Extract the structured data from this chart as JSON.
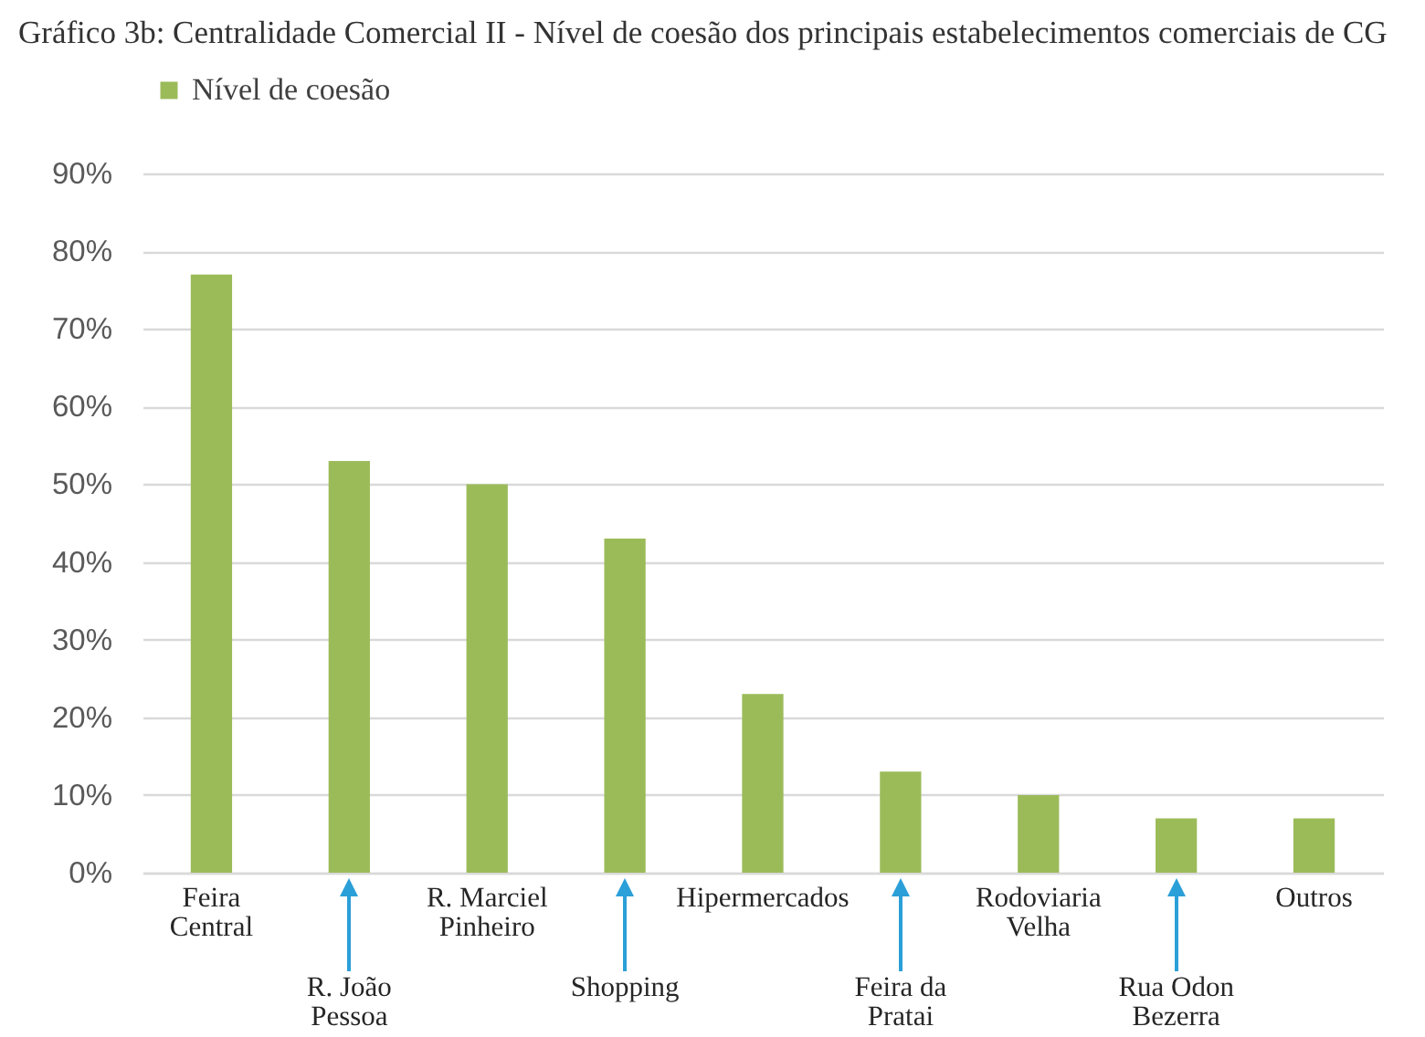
{
  "chart_data": {
    "type": "bar",
    "title": "Gráfico 3b: Centralidade Comercial II - Nível de coesão dos principais estabelecimentos comerciais de CG",
    "categories": [
      "Feira Central",
      "R. João Pessoa",
      "R. Marciel Pinheiro",
      "Shopping",
      "Hipermercados",
      "Feira da Pratai",
      "Rodoviaria Velha",
      "Rua Odon Bezerra",
      "Outros"
    ],
    "series": [
      {
        "name": "Nível de coesão",
        "color": "#9bbb59",
        "values": [
          77,
          53,
          50,
          43,
          23,
          13,
          10,
          7,
          7
        ]
      }
    ],
    "ylim": [
      0,
      90
    ],
    "yticks": [
      {
        "value": 0,
        "label": "0%"
      },
      {
        "value": 10,
        "label": "10%"
      },
      {
        "value": 20,
        "label": "20%"
      },
      {
        "value": 30,
        "label": "30%"
      },
      {
        "value": 40,
        "label": "40%"
      },
      {
        "value": 50,
        "label": "50%"
      },
      {
        "value": 60,
        "label": "60%"
      },
      {
        "value": 70,
        "label": "70%"
      },
      {
        "value": 80,
        "label": "80%"
      },
      {
        "value": 90,
        "label": "90%"
      }
    ],
    "grid": "y",
    "legend": "top left"
  }
}
